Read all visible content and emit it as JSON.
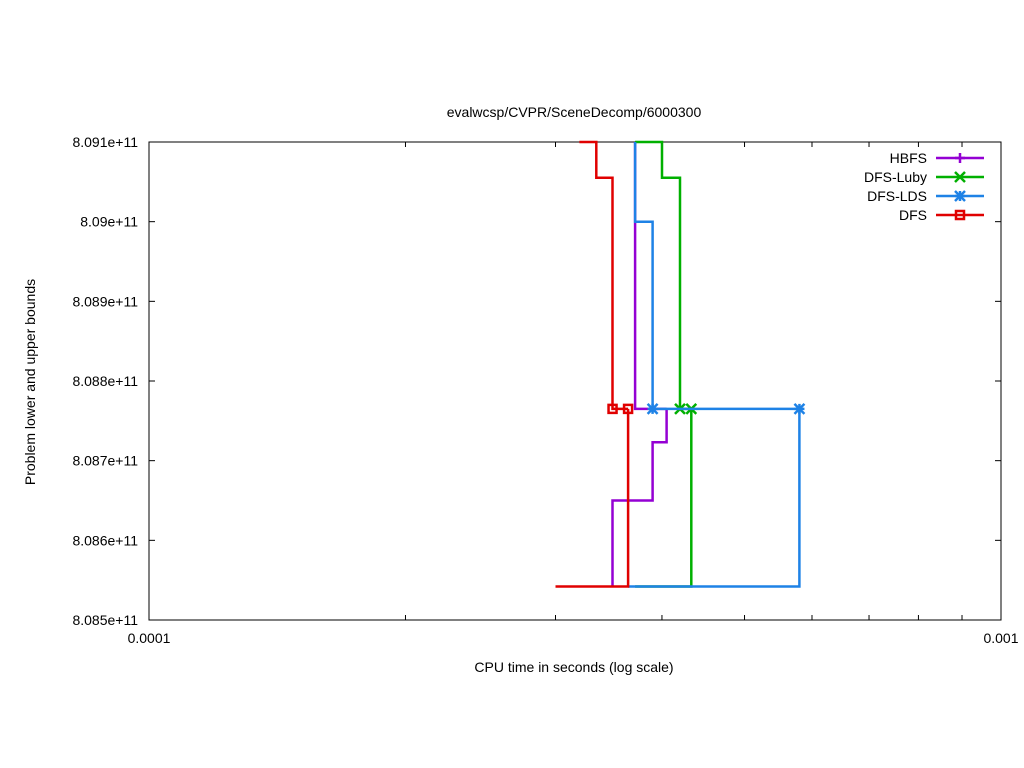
{
  "chart_data": {
    "type": "line",
    "title": "evalwcsp/CVPR/SceneDecomp/6000300",
    "xlabel": "CPU time in seconds (log scale)",
    "ylabel": "Problem lower and upper bounds",
    "x_scale": "log",
    "xlim": [
      0.0001,
      0.001
    ],
    "ylim": [
      808500000000,
      809100000000
    ],
    "x_ticks": [
      {
        "value": 0.0001,
        "label": "0.0001"
      },
      {
        "value": 0.001,
        "label": "0.001"
      }
    ],
    "y_ticks": [
      {
        "value": 808500000000,
        "label": "8.085e+11"
      },
      {
        "value": 808600000000,
        "label": "8.086e+11"
      },
      {
        "value": 808700000000,
        "label": "8.087e+11"
      },
      {
        "value": 808800000000,
        "label": "8.088e+11"
      },
      {
        "value": 808900000000,
        "label": "8.089e+11"
      },
      {
        "value": 809000000000,
        "label": "8.09e+11"
      },
      {
        "value": 809100000000,
        "label": "8.091e+11"
      }
    ],
    "grid": false,
    "legend_position": "top-right",
    "series": [
      {
        "name": "HBFS",
        "color": "#9400d3",
        "marker": "plus",
        "upper": [
          [
            0.000372,
            809100000000
          ],
          [
            0.000372,
            808765000000
          ],
          [
            0.000405,
            808765000000
          ]
        ],
        "lower": [
          [
            0.00035,
            808542000000
          ],
          [
            0.00035,
            808650000000
          ],
          [
            0.00039,
            808650000000
          ],
          [
            0.00039,
            808723000000
          ],
          [
            0.000405,
            808723000000
          ],
          [
            0.000405,
            808765000000
          ]
        ],
        "markers": []
      },
      {
        "name": "DFS-Luby",
        "color": "#00b000",
        "marker": "x",
        "upper": [
          [
            0.000372,
            809100000000
          ],
          [
            0.0004,
            809100000000
          ],
          [
            0.0004,
            809055000000
          ],
          [
            0.00042,
            809055000000
          ],
          [
            0.00042,
            808765000000
          ],
          [
            0.000433,
            808765000000
          ]
        ],
        "lower": [
          [
            0.000372,
            808542000000
          ],
          [
            0.000433,
            808542000000
          ],
          [
            0.000433,
            808765000000
          ]
        ],
        "markers": [
          [
            0.00042,
            808765000000
          ],
          [
            0.000433,
            808765000000
          ]
        ]
      },
      {
        "name": "DFS-LDS",
        "color": "#1e82e6",
        "marker": "star",
        "upper": [
          [
            0.000372,
            809100000000
          ],
          [
            0.000372,
            809000000000
          ],
          [
            0.00039,
            809000000000
          ],
          [
            0.00039,
            808765000000
          ],
          [
            0.00058,
            808765000000
          ]
        ],
        "lower": [
          [
            0.000365,
            808542000000
          ],
          [
            0.00058,
            808542000000
          ],
          [
            0.00058,
            808765000000
          ]
        ],
        "markers": [
          [
            0.00039,
            808765000000
          ],
          [
            0.00058,
            808765000000
          ]
        ]
      },
      {
        "name": "DFS",
        "color": "#e00000",
        "marker": "square",
        "upper": [
          [
            0.00032,
            809100000000
          ],
          [
            0.000335,
            809100000000
          ],
          [
            0.000335,
            809055000000
          ],
          [
            0.00035,
            809055000000
          ],
          [
            0.00035,
            808765000000
          ],
          [
            0.000365,
            808765000000
          ]
        ],
        "lower": [
          [
            0.0003,
            808542000000
          ],
          [
            0.000365,
            808542000000
          ],
          [
            0.000365,
            808765000000
          ]
        ],
        "markers": [
          [
            0.00035,
            808765000000
          ],
          [
            0.000365,
            808765000000
          ]
        ]
      }
    ]
  }
}
